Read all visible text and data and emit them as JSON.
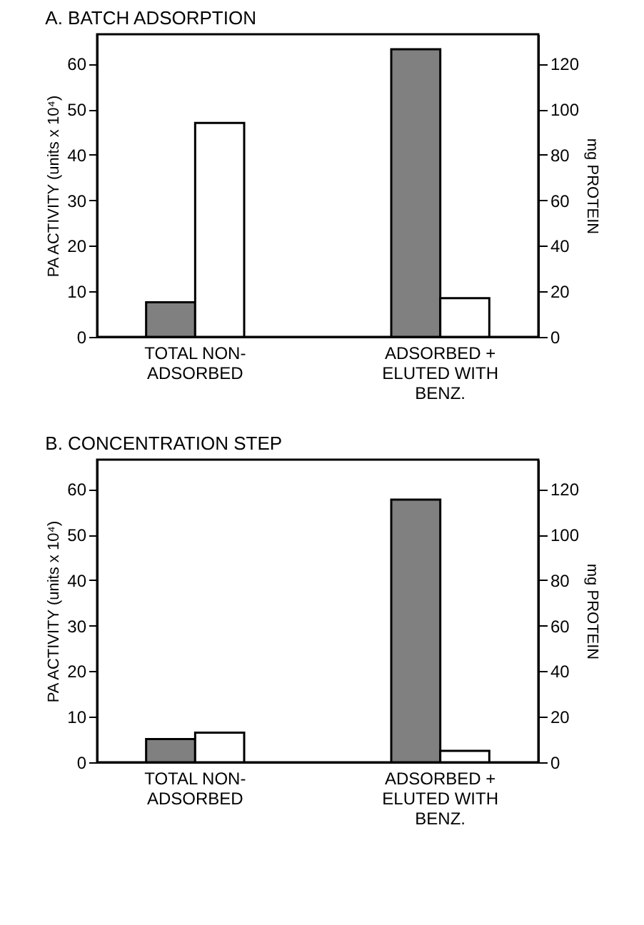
{
  "chart_data": [
    {
      "type": "bar",
      "title": "A. BATCH ADSORPTION",
      "categories": [
        "TOTAL NON-\nADSORBED",
        "ADSORBED +\nELUTED WITH\nBENZ."
      ],
      "ylabel": "PA ACTIVITY (units x 10⁴)",
      "y2label": "mg PROTEIN",
      "ylim": [
        0,
        66.5
      ],
      "yticks": [
        0,
        10,
        20,
        30,
        40,
        50,
        60
      ],
      "y2lim": [
        0,
        133
      ],
      "y2ticks": [
        0,
        20,
        40,
        60,
        80,
        100,
        120
      ],
      "series": [
        {
          "color": "#808080",
          "values": [
            7.6,
            63.2
          ]
        },
        {
          "color": "#ffffff",
          "axis": "y2",
          "values": [
            94,
            17
          ]
        }
      ]
    },
    {
      "type": "bar",
      "title": "B. CONCENTRATION STEP",
      "categories": [
        "TOTAL NON-\nADSORBED",
        "ADSORBED +\nELUTED WITH\nBENZ."
      ],
      "ylabel": "PA ACTIVITY (units x 10⁴)",
      "y2label": "mg PROTEIN",
      "ylim": [
        0,
        66.5
      ],
      "yticks": [
        0,
        10,
        20,
        30,
        40,
        50,
        60
      ],
      "y2lim": [
        0,
        133
      ],
      "y2ticks": [
        0,
        20,
        40,
        60,
        80,
        100,
        120
      ],
      "series": [
        {
          "color": "#808080",
          "values": [
            5.1,
            57.7
          ]
        },
        {
          "color": "#ffffff",
          "axis": "y2",
          "values": [
            13,
            5
          ]
        }
      ]
    }
  ]
}
